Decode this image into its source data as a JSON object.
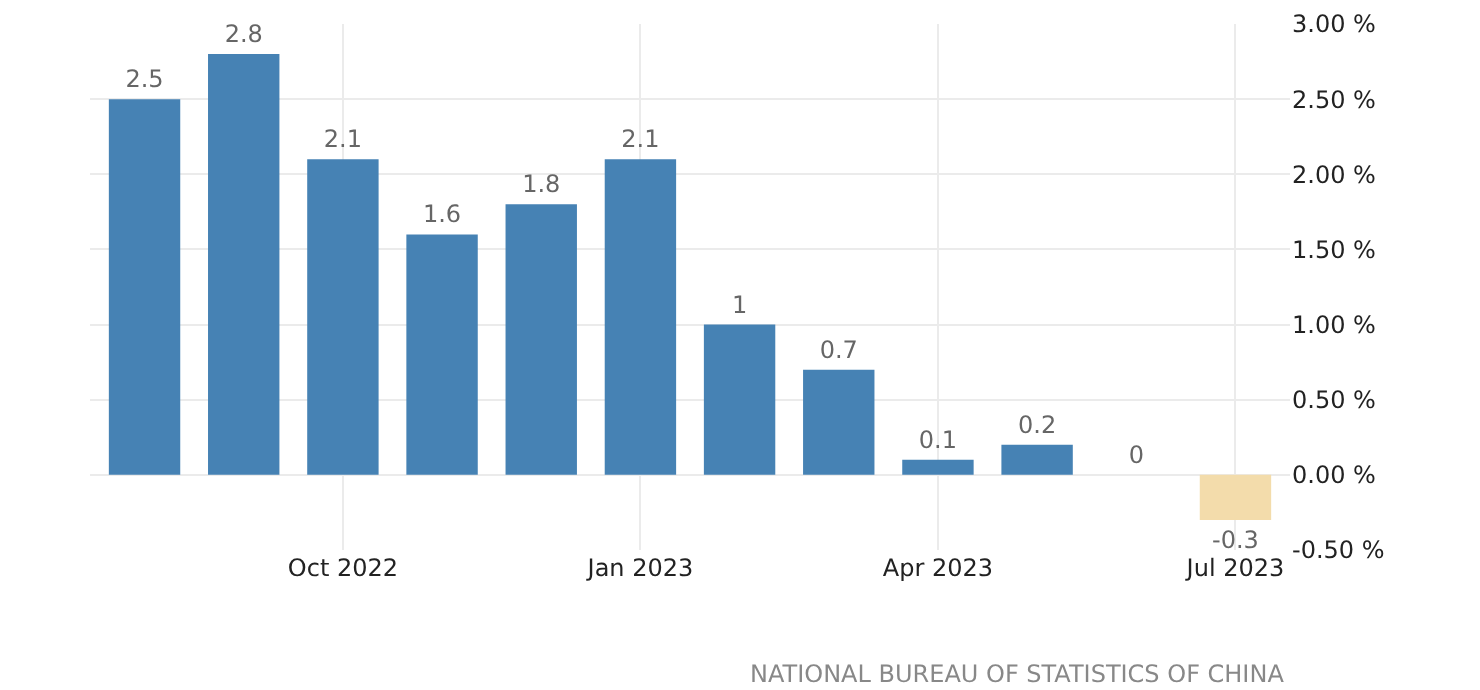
{
  "chart_data": {
    "type": "bar",
    "categories": [
      null,
      null,
      "Oct 2022",
      null,
      null,
      "Jan 2023",
      null,
      null,
      "Apr 2023",
      null,
      null,
      "Jul 2023"
    ],
    "values": [
      2.5,
      2.8,
      2.1,
      1.6,
      1.8,
      2.1,
      1,
      0.7,
      0.1,
      0.2,
      0,
      -0.3
    ],
    "colors": [
      "#4682b4",
      "#4682b4",
      "#4682b4",
      "#4682b4",
      "#4682b4",
      "#4682b4",
      "#4682b4",
      "#4682b4",
      "#4682b4",
      "#4682b4",
      "#4682b4",
      "#f3dcab"
    ],
    "ylim": [
      -0.5,
      3.0
    ],
    "yticks": [
      {
        "value": -0.5,
        "label": "-0.50 %"
      },
      {
        "value": 0,
        "label": "0.00 %"
      },
      {
        "value": 0.5,
        "label": "0.50 %"
      },
      {
        "value": 1,
        "label": "1.00 %"
      },
      {
        "value": 1.5,
        "label": "1.50 %"
      },
      {
        "value": 2,
        "label": "2.00 %"
      },
      {
        "value": 2.5,
        "label": "2.50 %"
      },
      {
        "value": 3,
        "label": "3.00 %"
      }
    ],
    "data_labels": true,
    "grid": true,
    "annotations": [
      "NATIONAL BUREAU OF STATISTICS OF CHINA"
    ]
  }
}
